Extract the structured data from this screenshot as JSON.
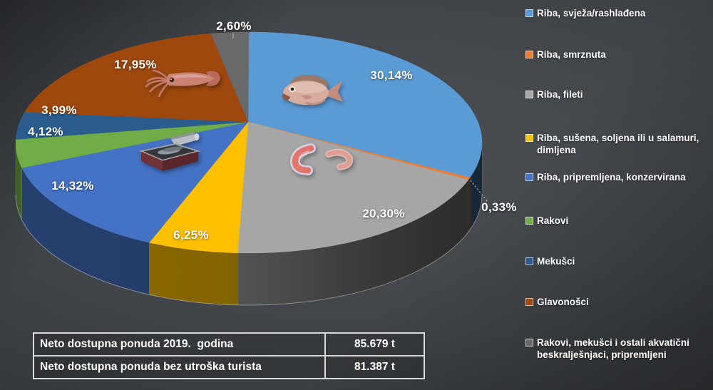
{
  "chart_data": {
    "type": "pie",
    "style": "3d",
    "unit": "%",
    "direction": "clockwise",
    "start_angle_deg": 0,
    "legend_position": "right",
    "slices": [
      {
        "label": "Riba, svježa/rashlađena",
        "value": 30.14,
        "display": "30,14%",
        "color": "#5B9BD5"
      },
      {
        "label": "Riba, smrznuta",
        "value": 0.33,
        "display": "0,33%",
        "color": "#ED7D31"
      },
      {
        "label": "Riba, fileti",
        "value": 20.3,
        "display": "20,30%",
        "color": "#A6A6A6"
      },
      {
        "label": "Riba, sušena, soljena ili u salamuri, dimljena",
        "value": 6.25,
        "display": "6,25%",
        "color": "#FFC000"
      },
      {
        "label": "Riba, pripremljena, konzervirana",
        "value": 14.32,
        "display": "14,32%",
        "color": "#4472C4"
      },
      {
        "label": "Rakovi",
        "value": 4.12,
        "display": "4,12%",
        "color": "#70AD47"
      },
      {
        "label": "Mekušci",
        "value": 3.99,
        "display": "3,99%",
        "color": "#2A5D8E"
      },
      {
        "label": "Glavonošci",
        "value": 17.95,
        "display": "17,95%",
        "color": "#9E480E"
      },
      {
        "label": "Rakovi, mekušci i ostali akvatični beskralješnjaci, pripremljeni",
        "value": 2.6,
        "display": "2,60%",
        "color": "#696969"
      }
    ]
  },
  "table": {
    "rows": [
      {
        "label": "Neto dostupna ponuda 2019.  godina",
        "value": "85.679 t"
      },
      {
        "label": "Neto dostupna ponuda bez utroška turista",
        "value": "81.387 t"
      }
    ]
  }
}
